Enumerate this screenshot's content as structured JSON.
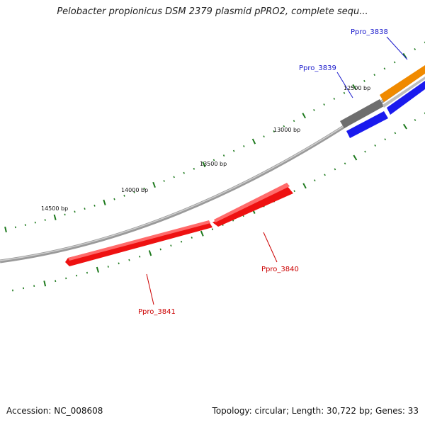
{
  "header": {
    "title": "Pelobacter propionicus DSM 2379 plasmid pPRO2, complete sequ..."
  },
  "footer": {
    "accession": "Accession: NC_008608",
    "summary": "Topology: circular; Length: 30,722 bp; Genes: 33"
  },
  "colors": {
    "backbone": "#8c8c8c",
    "tick": "#1e7a1e",
    "reverse_strand_gene": "#ee1111",
    "reverse_strand_label": "#cc0000",
    "forward_strand_gene": "#1a1aee",
    "forward_strand_label": "#1a1acc",
    "other_gene_gray": "#6e6e6e",
    "other_gene_orange": "#f08a00"
  },
  "ruler": {
    "ticks": [
      {
        "label": "12500 bp"
      },
      {
        "label": "13000 bp"
      },
      {
        "label": "13500 bp"
      },
      {
        "label": "14000 bp"
      },
      {
        "label": "14500 bp"
      }
    ]
  },
  "genes": [
    {
      "id": "Ppro_3838",
      "label": "Ppro_3838",
      "strand": "forward"
    },
    {
      "id": "Ppro_3839",
      "label": "Ppro_3839",
      "strand": "forward"
    },
    {
      "id": "Ppro_3840",
      "label": "Ppro_3840",
      "strand": "reverse"
    },
    {
      "id": "Ppro_3841",
      "label": "Ppro_3841",
      "strand": "reverse"
    }
  ]
}
